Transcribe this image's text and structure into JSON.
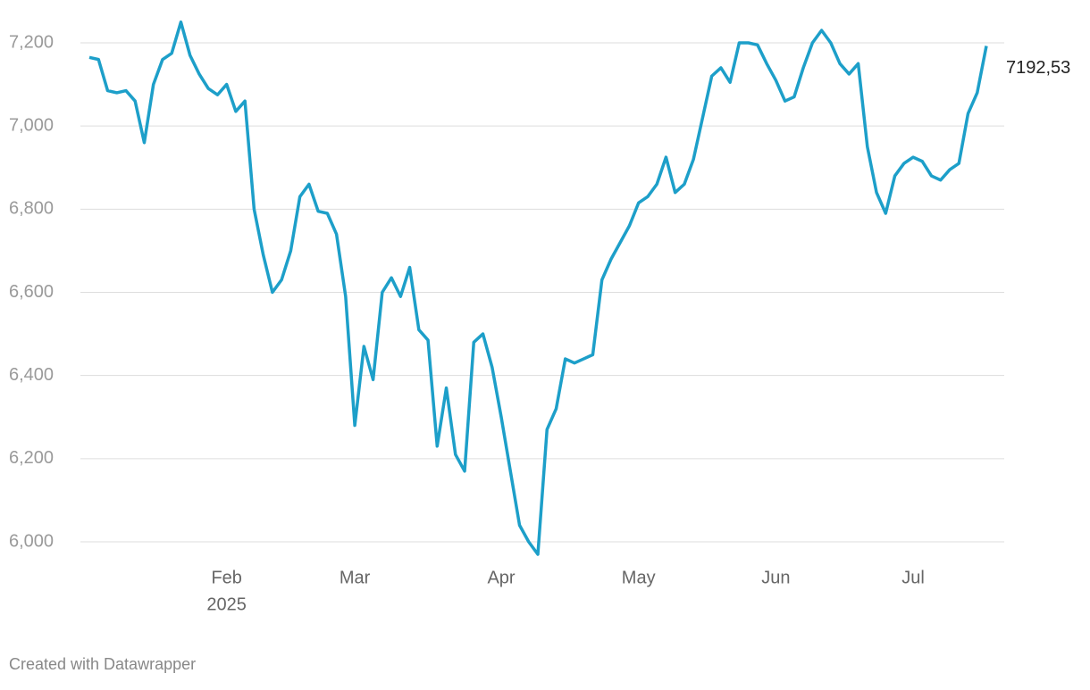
{
  "chart_data": {
    "type": "line",
    "categories": [
      null,
      null,
      null,
      null,
      null,
      null,
      null,
      null,
      null,
      null,
      null,
      null,
      null,
      null,
      null,
      "Feb",
      null,
      null,
      null,
      null,
      null,
      null,
      null,
      null,
      null,
      null,
      null,
      null,
      null,
      "Mar",
      null,
      null,
      null,
      null,
      null,
      null,
      null,
      null,
      null,
      null,
      null,
      null,
      null,
      null,
      null,
      "Apr",
      null,
      null,
      null,
      null,
      null,
      null,
      null,
      null,
      null,
      null,
      null,
      null,
      null,
      null,
      "May",
      null,
      null,
      null,
      null,
      null,
      null,
      null,
      null,
      null,
      null,
      null,
      null,
      null,
      null,
      "Jun",
      null,
      null,
      null,
      null,
      null,
      null,
      null,
      null,
      null,
      null,
      null,
      null,
      null,
      null,
      "Jul",
      null,
      null,
      null,
      null,
      null,
      null,
      null,
      null
    ],
    "x_year_label": "2025",
    "series": [
      {
        "color": "#1d9fc9",
        "values": [
          7165,
          7160,
          7085,
          7080,
          7085,
          7060,
          6960,
          7100,
          7160,
          7175,
          7250,
          7170,
          7125,
          7090,
          7075,
          7100,
          7035,
          7060,
          6800,
          6690,
          6600,
          6630,
          6700,
          6830,
          6860,
          6795,
          6790,
          6740,
          6590,
          6280,
          6470,
          6390,
          6600,
          6635,
          6590,
          6660,
          6510,
          6485,
          6230,
          6370,
          6210,
          6170,
          6480,
          6500,
          6420,
          6300,
          6170,
          6040,
          6000,
          5970,
          6270,
          6320,
          6440,
          6430,
          6440,
          6450,
          6630,
          6680,
          6720,
          6760,
          6815,
          6830,
          6860,
          6925,
          6840,
          6860,
          6920,
          7020,
          7120,
          7140,
          7105,
          7200,
          7200,
          7195,
          7150,
          7110,
          7060,
          7070,
          7140,
          7200,
          7230,
          7200,
          7150,
          7125,
          7150,
          6950,
          6840,
          6790,
          6880,
          6910,
          6925,
          6915,
          6880,
          6870,
          6895,
          6910,
          7030,
          7080,
          7192.53
        ],
        "value_labels": [
          null,
          null,
          null,
          null,
          null,
          null,
          null,
          null,
          null,
          null,
          null,
          null,
          null,
          null,
          null,
          null,
          null,
          null,
          null,
          null,
          null,
          null,
          null,
          null,
          null,
          null,
          null,
          null,
          null,
          null,
          null,
          null,
          null,
          null,
          null,
          null,
          null,
          null,
          null,
          null,
          null,
          null,
          null,
          null,
          null,
          null,
          null,
          null,
          null,
          null,
          null,
          null,
          null,
          null,
          null,
          null,
          null,
          null,
          null,
          null,
          null,
          null,
          null,
          null,
          null,
          null,
          null,
          null,
          null,
          null,
          null,
          null,
          null,
          null,
          null,
          null,
          null,
          null,
          null,
          null,
          null,
          null,
          null,
          null,
          null,
          null,
          null,
          null,
          null,
          null,
          null,
          null,
          null,
          null,
          null,
          null,
          null,
          null,
          "7192,53"
        ]
      }
    ],
    "ylim": [
      6000,
      7200
    ],
    "yticks": [
      {
        "value": 6000,
        "label": "6,000"
      },
      {
        "value": 6200,
        "label": "6,200"
      },
      {
        "value": 6400,
        "label": "6,400"
      },
      {
        "value": 6600,
        "label": "6,600"
      },
      {
        "value": 6800,
        "label": "6,800"
      },
      {
        "value": 7000,
        "label": "7,000"
      },
      {
        "value": 7200,
        "label": "7,200"
      }
    ],
    "grid": true,
    "footer": "Created with Datawrapper"
  }
}
